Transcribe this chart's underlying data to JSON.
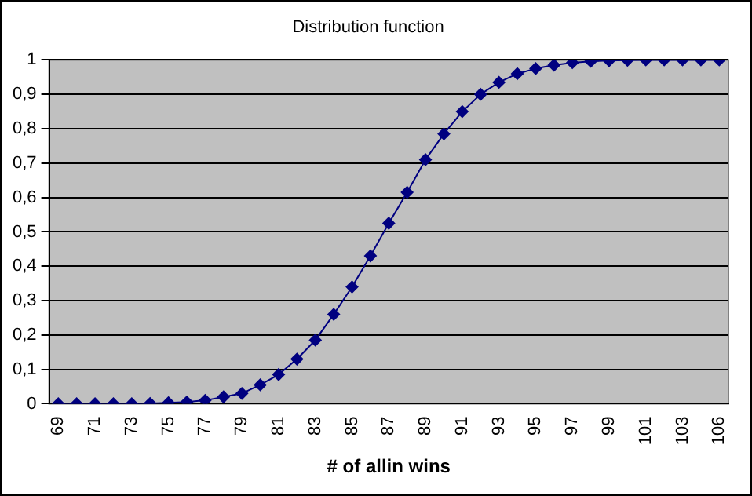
{
  "chart_data": {
    "type": "line",
    "title": "Distribution function",
    "xlabel": "# of allin wins",
    "categories": [
      "69",
      null,
      "71",
      null,
      "73",
      null,
      "75",
      null,
      "77",
      null,
      "79",
      null,
      "81",
      null,
      "83",
      null,
      "85",
      null,
      "87",
      null,
      "89",
      null,
      "91",
      null,
      "93",
      null,
      "95",
      null,
      "97",
      null,
      "99",
      null,
      "101",
      null,
      "103",
      null,
      "106"
    ],
    "series": [
      {
        "color": "#000080",
        "values": [
          0,
          0,
          0,
          0,
          0,
          0.001,
          0.003,
          0.005,
          0.01,
          0.02,
          0.03,
          0.055,
          0.085,
          0.13,
          0.185,
          0.26,
          0.34,
          0.43,
          0.525,
          0.615,
          0.71,
          0.785,
          0.85,
          0.9,
          0.935,
          0.96,
          0.975,
          0.985,
          0.992,
          0.996,
          0.998,
          0.999,
          1,
          1,
          1,
          1,
          1
        ]
      }
    ],
    "ylim": [
      0,
      1
    ],
    "yticks": [
      0,
      {
        "value": 0.1,
        "label": "0,1"
      },
      {
        "value": 0.2,
        "label": "0,2"
      },
      {
        "value": 0.3,
        "label": "0,3"
      },
      {
        "value": 0.4,
        "label": "0,4"
      },
      {
        "value": 0.5,
        "label": "0,5"
      },
      {
        "value": 0.6,
        "label": "0,6"
      },
      {
        "value": 0.7,
        "label": "0,7"
      },
      {
        "value": 0.8,
        "label": "0,8"
      },
      {
        "value": 0.9,
        "label": "0,9"
      },
      1
    ],
    "grid": "y",
    "legend": false,
    "marker": "diamond",
    "line_style": "solid"
  }
}
